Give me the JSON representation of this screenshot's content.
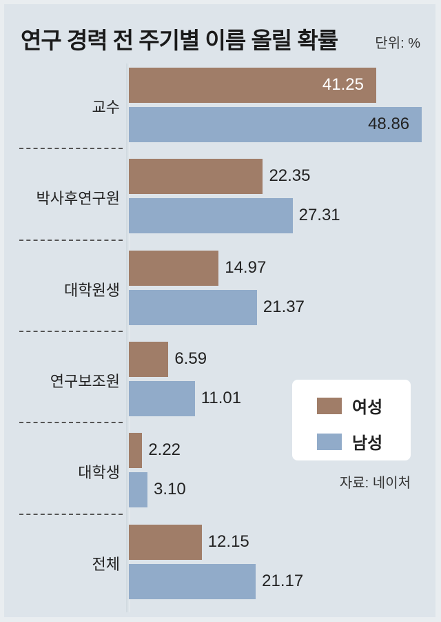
{
  "chart_data": {
    "type": "bar",
    "orientation": "horizontal",
    "title": "연구 경력 전 주기별 이름 올릴 확률",
    "unit": "단위: %",
    "source": "자료: 네이처",
    "categories": [
      "교수",
      "박사후연구원",
      "대학원생",
      "연구보조원",
      "대학생",
      "전체"
    ],
    "series": [
      {
        "name": "여성",
        "color": "#a07d68",
        "values": [
          41.25,
          22.35,
          14.97,
          6.59,
          2.22,
          12.15
        ],
        "labels": [
          "41.25",
          "22.35",
          "14.97",
          "6.59",
          "2.22",
          "12.15"
        ]
      },
      {
        "name": "남성",
        "color": "#91abc9",
        "values": [
          48.86,
          27.31,
          21.37,
          11.01,
          3.1,
          21.17
        ],
        "labels": [
          "48.86",
          "27.31",
          "21.37",
          "11.01",
          "3.10",
          "21.17"
        ]
      }
    ],
    "xlim": [
      0,
      50
    ],
    "grid": false,
    "legend_position": "right-middle"
  }
}
